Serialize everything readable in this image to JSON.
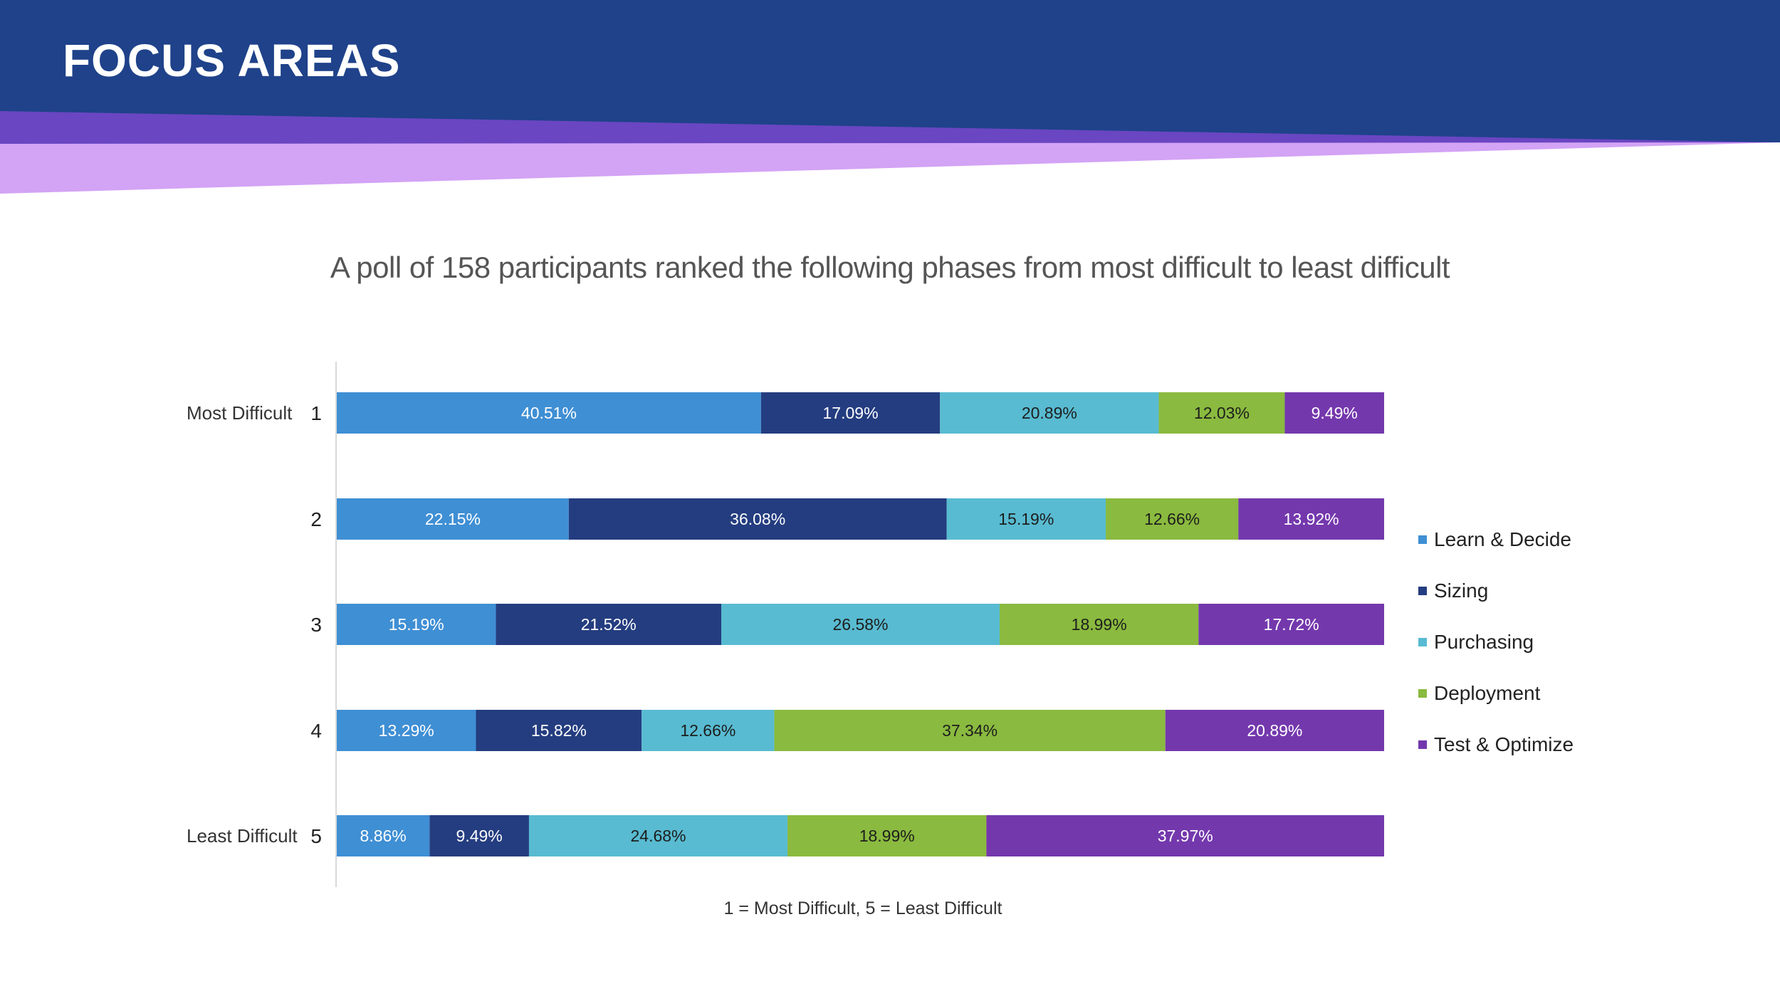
{
  "header": {
    "title": "FOCUS AREAS",
    "colors": {
      "band": "#1f428a",
      "stripe_purple": "#6a46c2",
      "stripe_lavender": "#d3a3f5"
    }
  },
  "subtitle": "A poll of 158 participants ranked the following phases from most difficult to least difficult",
  "axis_note": "1 = Most Difficult,  5 = Least Difficult",
  "chart_data": {
    "type": "stacked-bar-horizontal",
    "title": "A poll of 158 participants ranked the following phases from most difficult to least difficult",
    "categories": [
      "1",
      "2",
      "3",
      "4",
      "5"
    ],
    "category_descriptions": [
      "Most Difficult",
      "",
      "",
      "",
      "Least Difficult"
    ],
    "xlim": [
      0,
      100
    ],
    "unit": "%",
    "legend_position": "right",
    "series": [
      {
        "name": "Learn & Decide",
        "color": "#3f8fd4",
        "label_color": "#ffffff",
        "values": [
          40.51,
          22.15,
          15.19,
          13.29,
          8.86
        ],
        "labels": [
          "40.51%",
          "22.15%",
          "15.19%",
          "13.29%",
          "8.86%"
        ]
      },
      {
        "name": "Sizing",
        "color": "#243d80",
        "label_color": "#ffffff",
        "values": [
          17.09,
          36.08,
          21.52,
          15.82,
          9.49
        ],
        "labels": [
          "17.09%",
          "36.08%",
          "21.52%",
          "15.82%",
          "9.49%"
        ]
      },
      {
        "name": "Purchasing",
        "color": "#58bbd1",
        "label_color": "#1d1d1d",
        "values": [
          20.89,
          15.19,
          26.58,
          12.66,
          24.68
        ],
        "labels": [
          "20.89%",
          "15.19%",
          "26.58%",
          "12.66%",
          "24.68%"
        ]
      },
      {
        "name": "Deployment",
        "color": "#8aba3f",
        "label_color": "#1d1d1d",
        "values": [
          12.03,
          12.66,
          18.99,
          37.34,
          18.99
        ],
        "labels": [
          "12.03%",
          "12.66%",
          "18.99%",
          "37.34%",
          "18.99%"
        ]
      },
      {
        "name": "Test & Optimize",
        "color": "#7438ad",
        "label_color": "#ffffff",
        "values": [
          9.49,
          13.92,
          17.72,
          20.89,
          37.97
        ],
        "labels": [
          "9.49%",
          "13.92%",
          "17.72%",
          "20.89%",
          "37.97%"
        ]
      }
    ]
  }
}
